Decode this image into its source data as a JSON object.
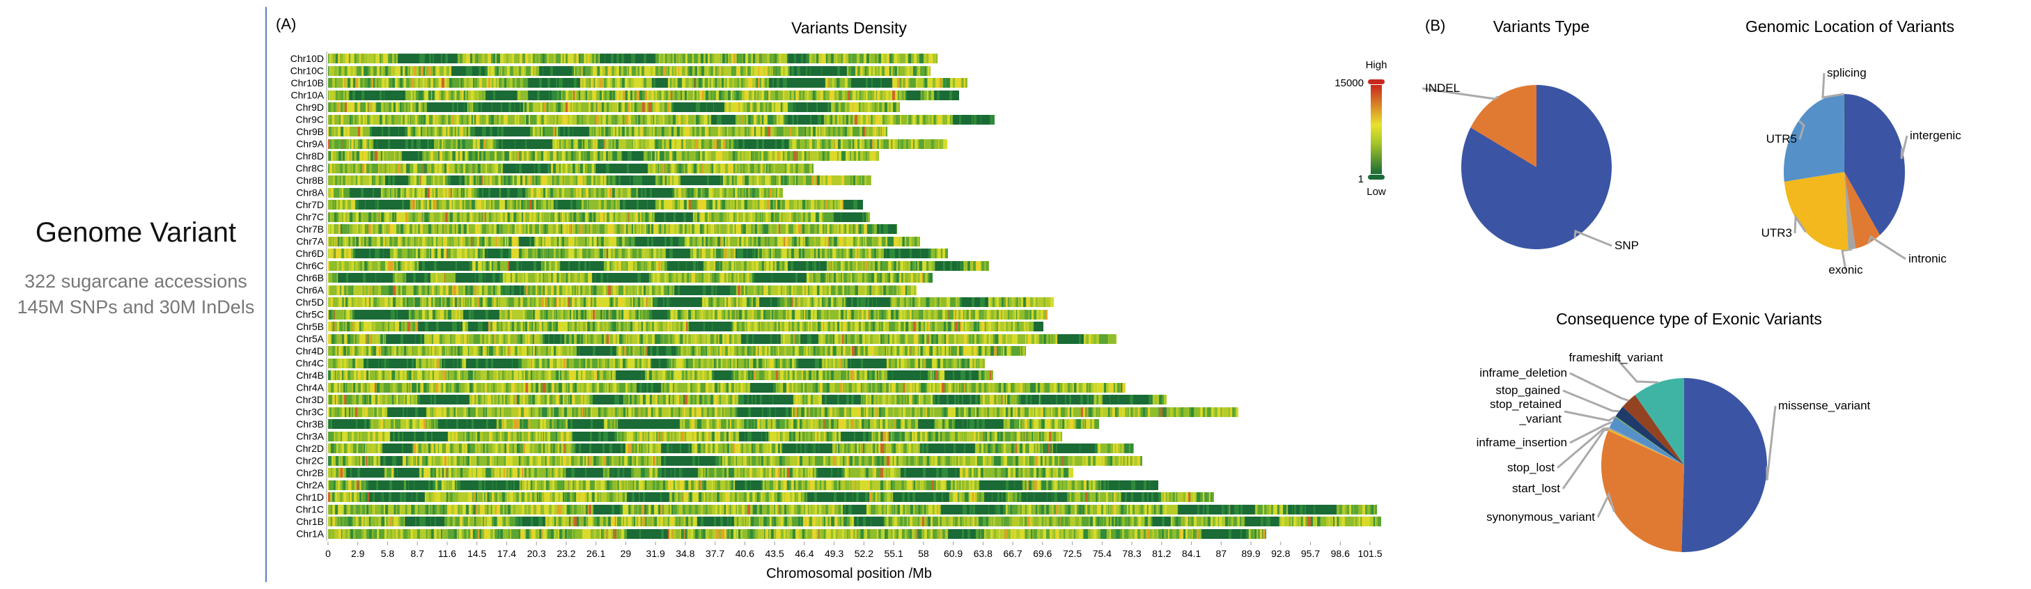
{
  "intro": {
    "title": "Genome Variant",
    "subtitle_lines": [
      "322 sugarcane accessions",
      "145M SNPs and 30M InDels"
    ]
  },
  "chart_data": [
    {
      "type": "heatmap",
      "panel": "(A)",
      "title": "Variants Density",
      "xlabel": "Chromosomal position /Mb",
      "ylabel": "",
      "x_ticks": [
        "0",
        "2.9",
        "5.8",
        "8.7",
        "11.6",
        "14.5",
        "17.4",
        "20.3",
        "23.2",
        "26.1",
        "29",
        "31.9",
        "34.8",
        "37.7",
        "40.6",
        "43.5",
        "46.4",
        "49.3",
        "52.2",
        "55.1",
        "58",
        "60.9",
        "63.8",
        "66.7",
        "69.6",
        "72.5",
        "75.4",
        "78.3",
        "81.2",
        "84.1",
        "87",
        "89.9",
        "92.8",
        "95.7",
        "98.6",
        "101.5"
      ],
      "xlim": [
        0,
        103
      ],
      "chromosomes": [
        "Chr10D",
        "Chr10C",
        "Chr10B",
        "Chr10A",
        "Chr9D",
        "Chr9C",
        "Chr9B",
        "Chr9A",
        "Chr8D",
        "Chr8C",
        "Chr8B",
        "Chr8A",
        "Chr7D",
        "Chr7C",
        "Chr7B",
        "Chr7A",
        "Chr6D",
        "Chr6C",
        "Chr6B",
        "Chr6A",
        "Chr5D",
        "Chr5C",
        "Chr5B",
        "Chr5A",
        "Chr4D",
        "Chr4C",
        "Chr4B",
        "Chr4A",
        "Chr3D",
        "Chr3C",
        "Chr3B",
        "Chr3A",
        "Chr2D",
        "Chr2C",
        "Chr2B",
        "Chr2A",
        "Chr1D",
        "Chr1C",
        "Chr1B",
        "Chr1A"
      ],
      "lengths_mb": [
        59.4,
        58.7,
        62.3,
        61.5,
        55.7,
        64.9,
        54.5,
        60.3,
        53.7,
        47.3,
        52.9,
        44.3,
        52.1,
        52.8,
        55.4,
        57.7,
        60.4,
        64.4,
        58.9,
        57.3,
        70.7,
        70.1,
        69.7,
        76.8,
        68.0,
        64.0,
        64.8,
        77.7,
        81.7,
        88.7,
        75.1,
        71.5,
        78.5,
        79.3,
        72.6,
        80.9,
        86.3,
        102.2,
        102.6,
        91.4
      ],
      "legend": {
        "high_label": "High",
        "low_label": "Low",
        "max": "15000",
        "min": "1",
        "placement": "top-right"
      },
      "colors": {
        "low": "#1a6b35",
        "mid": "#e4e12c",
        "high": "#c8281e"
      }
    },
    {
      "type": "pie",
      "panel": "(B)",
      "title": "Variants Type",
      "labels": [
        "SNP",
        "INDEL"
      ],
      "values": [
        83,
        17
      ],
      "colors": [
        "#3b55a4",
        "#e07a32"
      ]
    },
    {
      "type": "pie",
      "title": "Genomic Location of Variants",
      "labels": [
        "intergenic",
        "intronic",
        "exonic",
        "UTR3",
        "UTR5",
        "splicing"
      ],
      "values": [
        40,
        7,
        2,
        24,
        26.9,
        0.1
      ],
      "colors": [
        "#3b55a4",
        "#e07a32",
        "#a5a5a5",
        "#f2b81e",
        "#5591c8",
        "#70ad47"
      ]
    },
    {
      "type": "pie",
      "title": "Consequence type of Exonic Variants",
      "labels": [
        "missense_variant",
        "synonymous_variant",
        "start_lost",
        "stop_lost",
        "inframe_insertion",
        "stop_retained_variant",
        "stop_gained",
        "inframe_deletion",
        "frameshift_variant"
      ],
      "display_labels": [
        "missense_variant",
        "synonymous_variant",
        "start_lost",
        "stop_lost",
        "inframe_insertion",
        "stop_retained\n_variant",
        "stop_gained",
        "inframe_deletion",
        "frameshift_variant"
      ],
      "values": [
        50.5,
        31,
        0.3,
        0.3,
        2.2,
        0.2,
        2.2,
        3.2,
        10.1
      ],
      "colors": [
        "#3b55a4",
        "#e07a32",
        "#f2b81e",
        "#a5a5a5",
        "#5591c8",
        "#70ad47",
        "#1f3b6b",
        "#934322",
        "#40b4a4"
      ]
    }
  ]
}
